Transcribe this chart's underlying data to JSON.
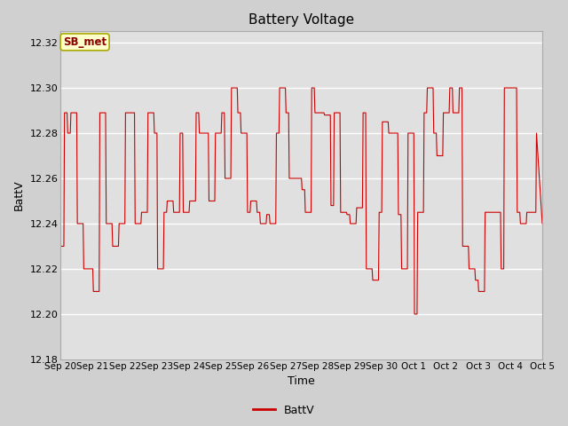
{
  "title": "Battery Voltage",
  "xlabel": "Time",
  "ylabel": "BattV",
  "ylim": [
    12.18,
    12.325
  ],
  "yticks": [
    12.18,
    12.2,
    12.22,
    12.24,
    12.26,
    12.28,
    12.3,
    12.32
  ],
  "x_tick_labels": [
    "Sep 20",
    "Sep 21",
    "Sep 22",
    "Sep 23",
    "Sep 24",
    "Sep 25",
    "Sep 26",
    "Sep 27",
    "Sep 28",
    "Sep 29",
    "Sep 30",
    "Oct 1",
    "Oct 2",
    "Oct 3",
    "Oct 4",
    "Oct 5"
  ],
  "line_color": "#cc0000",
  "bg_color": "#e0e0e0",
  "fig_bg_color": "#d0d0d0",
  "grid_color": "#ffffff",
  "annotation_text": "SB_met",
  "annotation_bg": "#ffffcc",
  "annotation_border": "#aaaa00",
  "legend_label": "BattV",
  "legend_color": "#cc0000",
  "x_values": [
    0.0,
    0.1,
    0.12,
    0.2,
    0.22,
    0.3,
    0.32,
    0.5,
    0.52,
    0.7,
    0.72,
    1.0,
    1.02,
    1.2,
    1.22,
    1.4,
    1.42,
    1.6,
    1.62,
    1.8,
    1.82,
    2.0,
    2.02,
    2.1,
    2.12,
    2.3,
    2.32,
    2.5,
    2.52,
    2.7,
    2.72,
    2.9,
    2.92,
    3.0,
    3.02,
    3.2,
    3.22,
    3.3,
    3.32,
    3.5,
    3.52,
    3.7,
    3.72,
    3.8,
    3.82,
    4.0,
    4.02,
    4.2,
    4.22,
    4.3,
    4.32,
    4.5,
    4.52,
    4.6,
    4.62,
    4.8,
    4.82,
    5.0,
    5.02,
    5.1,
    5.12,
    5.3,
    5.32,
    5.5,
    5.52,
    5.6,
    5.62,
    5.8,
    5.82,
    5.9,
    5.92,
    6.1,
    6.12,
    6.2,
    6.22,
    6.4,
    6.42,
    6.5,
    6.52,
    6.7,
    6.72,
    6.8,
    6.82,
    7.0,
    7.02,
    7.1,
    7.12,
    7.3,
    7.32,
    7.5,
    7.52,
    7.6,
    7.62,
    7.8,
    7.82,
    7.9,
    7.92,
    8.1,
    8.12,
    8.2,
    8.22,
    8.4,
    8.42,
    8.5,
    8.52,
    8.7,
    8.72,
    8.9,
    8.92,
    9.0,
    9.02,
    9.2,
    9.22,
    9.4,
    9.42,
    9.5,
    9.52,
    9.7,
    9.72,
    9.9,
    9.92,
    10.0,
    10.02,
    10.2,
    10.22,
    10.3,
    10.32,
    10.5,
    10.52,
    10.6,
    10.62,
    10.8,
    10.82,
    11.0,
    11.02,
    11.1,
    11.12,
    11.3,
    11.32,
    11.4,
    11.42,
    11.6,
    11.62,
    11.7,
    11.72,
    11.9,
    11.92,
    12.1,
    12.12,
    12.2,
    12.22,
    12.4,
    12.42,
    12.5,
    12.52,
    12.7,
    12.72,
    12.9,
    12.92,
    13.0,
    13.02,
    13.2,
    13.22,
    13.3,
    13.32,
    13.5,
    13.52,
    13.7,
    13.72,
    13.8,
    13.82,
    14.0,
    14.02,
    14.2,
    14.22,
    14.3,
    14.32,
    14.5,
    14.52,
    14.6,
    14.62,
    14.8,
    14.82,
    15.0
  ],
  "y_values": [
    12.23,
    12.23,
    12.289,
    12.289,
    12.28,
    12.28,
    12.289,
    12.289,
    12.24,
    12.24,
    12.22,
    12.22,
    12.21,
    12.21,
    12.289,
    12.289,
    12.24,
    12.24,
    12.23,
    12.23,
    12.24,
    12.24,
    12.289,
    12.289,
    12.289,
    12.289,
    12.24,
    12.24,
    12.245,
    12.245,
    12.289,
    12.289,
    12.28,
    12.28,
    12.22,
    12.22,
    12.245,
    12.245,
    12.25,
    12.25,
    12.245,
    12.245,
    12.28,
    12.28,
    12.245,
    12.245,
    12.25,
    12.25,
    12.289,
    12.289,
    12.28,
    12.28,
    12.28,
    12.28,
    12.25,
    12.25,
    12.28,
    12.28,
    12.289,
    12.289,
    12.26,
    12.26,
    12.3,
    12.3,
    12.289,
    12.289,
    12.28,
    12.28,
    12.245,
    12.245,
    12.25,
    12.25,
    12.245,
    12.245,
    12.24,
    12.24,
    12.244,
    12.244,
    12.24,
    12.24,
    12.28,
    12.28,
    12.3,
    12.3,
    12.289,
    12.289,
    12.26,
    12.26,
    12.26,
    12.26,
    12.255,
    12.255,
    12.245,
    12.245,
    12.3,
    12.3,
    12.289,
    12.289,
    12.289,
    12.289,
    12.288,
    12.288,
    12.248,
    12.248,
    12.289,
    12.289,
    12.245,
    12.245,
    12.244,
    12.244,
    12.24,
    12.24,
    12.247,
    12.247,
    12.289,
    12.289,
    12.22,
    12.22,
    12.215,
    12.215,
    12.245,
    12.245,
    12.285,
    12.285,
    12.28,
    12.28,
    12.28,
    12.28,
    12.244,
    12.244,
    12.22,
    12.22,
    12.28,
    12.28,
    12.2,
    12.2,
    12.245,
    12.245,
    12.289,
    12.289,
    12.3,
    12.3,
    12.28,
    12.28,
    12.27,
    12.27,
    12.289,
    12.289,
    12.3,
    12.3,
    12.289,
    12.289,
    12.3,
    12.3,
    12.23,
    12.23,
    12.22,
    12.22,
    12.215,
    12.215,
    12.21,
    12.21,
    12.245,
    12.245,
    12.245,
    12.245,
    12.245,
    12.245,
    12.22,
    12.22,
    12.3,
    12.3,
    12.3,
    12.3,
    12.245,
    12.245,
    12.24,
    12.24,
    12.245,
    12.245,
    12.245,
    12.245,
    12.28,
    12.24
  ]
}
